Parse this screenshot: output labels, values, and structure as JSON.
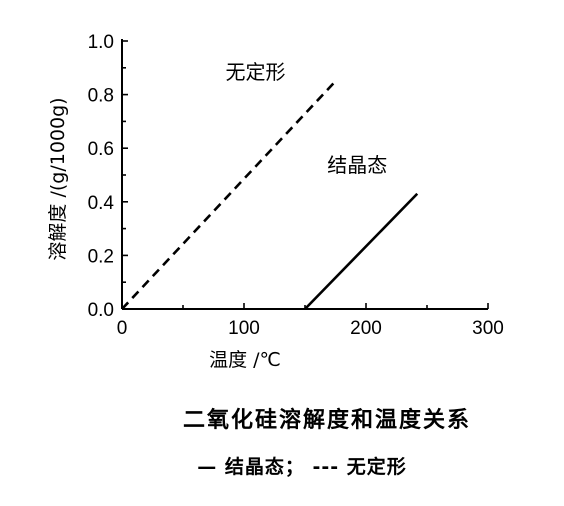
{
  "chart_data": {
    "type": "line",
    "title": "二氧化硅溶解度和温度关系",
    "legend_text": "— 结晶态； --- 无定形",
    "xlabel": "温度 /℃",
    "ylabel": "溶解度 /(g/1000g)",
    "xlim": [
      0,
      300
    ],
    "ylim": [
      0,
      1.0
    ],
    "x_ticks": [
      0,
      100,
      200,
      300
    ],
    "x_tick_labels": [
      "0",
      "100",
      "200",
      "300"
    ],
    "y_ticks": [
      0.0,
      0.2,
      0.4,
      0.6,
      0.8,
      1.0
    ],
    "y_tick_labels": [
      "0.0",
      "0.2",
      "0.4",
      "0.6",
      "0.8",
      "1.0"
    ],
    "grid": false,
    "series": [
      {
        "name": "无定形",
        "style": "dashed",
        "color": "#000000",
        "x": [
          0,
          175
        ],
        "y": [
          0.0,
          0.85
        ]
      },
      {
        "name": "结晶态",
        "style": "solid",
        "color": "#000000",
        "x": [
          150,
          242
        ],
        "y": [
          0.0,
          0.43
        ]
      }
    ]
  }
}
